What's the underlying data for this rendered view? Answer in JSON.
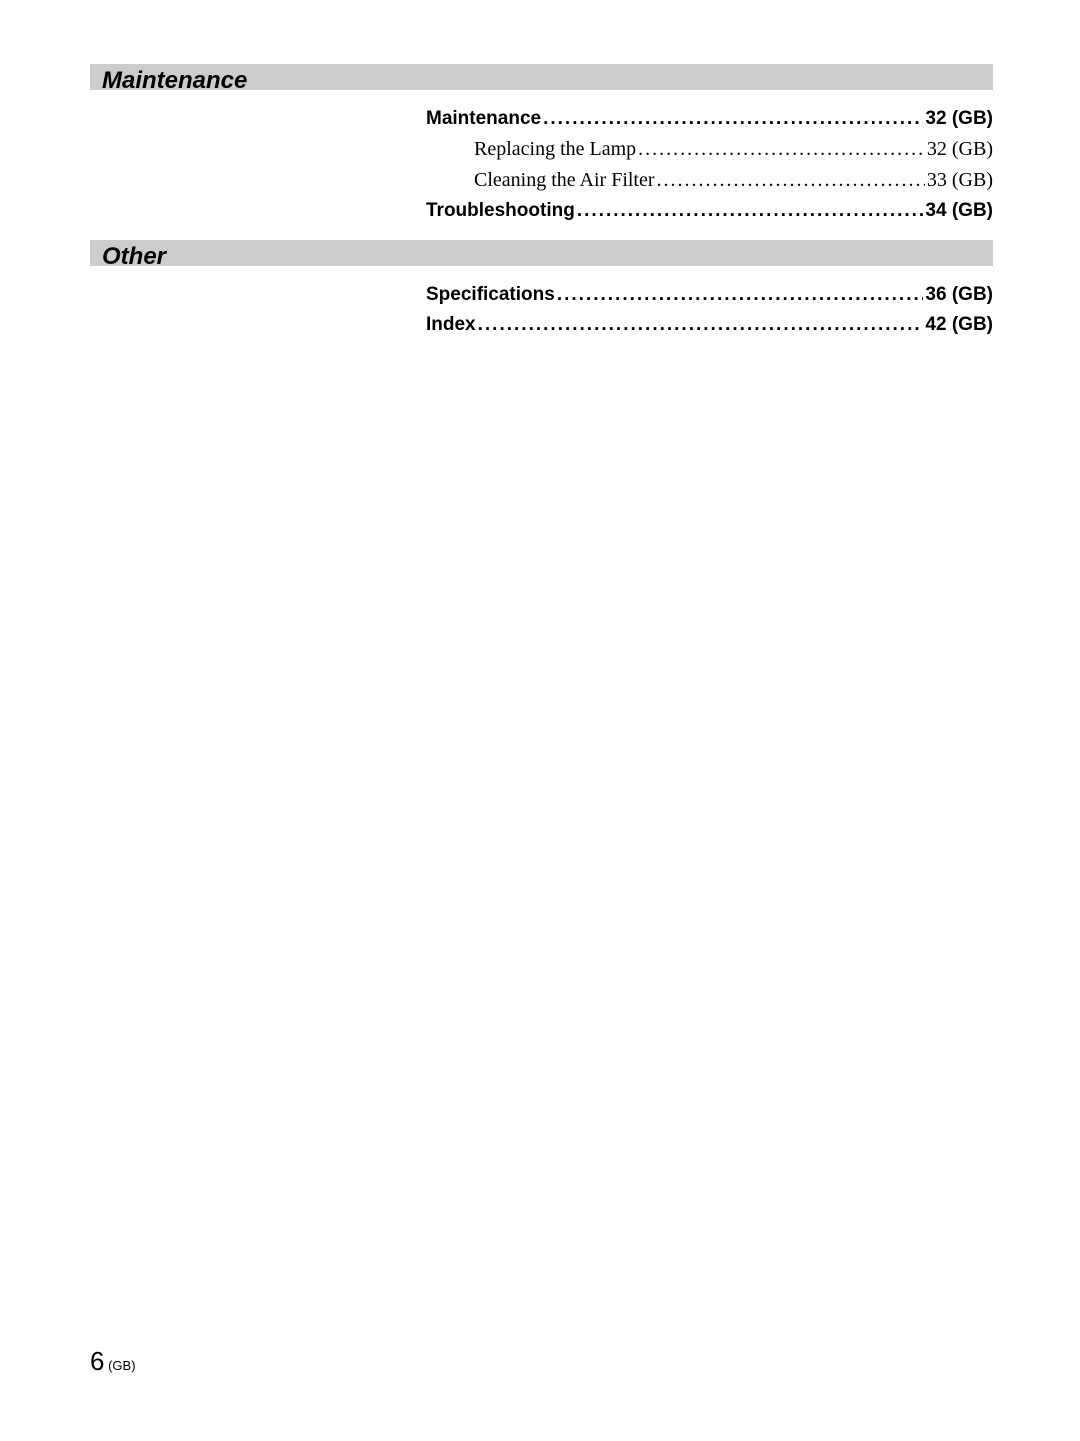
{
  "colors": {
    "header_bg": "#cccccc",
    "text": "#000000",
    "page_bg": "#ffffff"
  },
  "typography": {
    "header_fontsize": 24,
    "bold_entry_fontsize": 19,
    "serif_entry_fontsize": 20,
    "footer_num_fontsize": 26,
    "footer_suffix_fontsize": 13
  },
  "sections": [
    {
      "title": "Maintenance",
      "entries": [
        {
          "label": "Maintenance",
          "page": "32 (GB)",
          "style": "bold",
          "indent": false
        },
        {
          "label": "Replacing the Lamp",
          "page": "32 (GB)",
          "style": "serif",
          "indent": true
        },
        {
          "label": "Cleaning the Air Filter",
          "page": "33 (GB)",
          "style": "serif",
          "indent": true
        },
        {
          "label": "Troubleshooting",
          "page": "34 (GB)",
          "style": "bold",
          "indent": false
        }
      ]
    },
    {
      "title": "Other",
      "entries": [
        {
          "label": "Specifications",
          "page": "36 (GB)",
          "style": "bold",
          "indent": false
        },
        {
          "label": "Index",
          "page": "42 (GB)",
          "style": "bold",
          "indent": false
        }
      ]
    }
  ],
  "footer": {
    "num": "6",
    "suffix": " (GB)"
  }
}
